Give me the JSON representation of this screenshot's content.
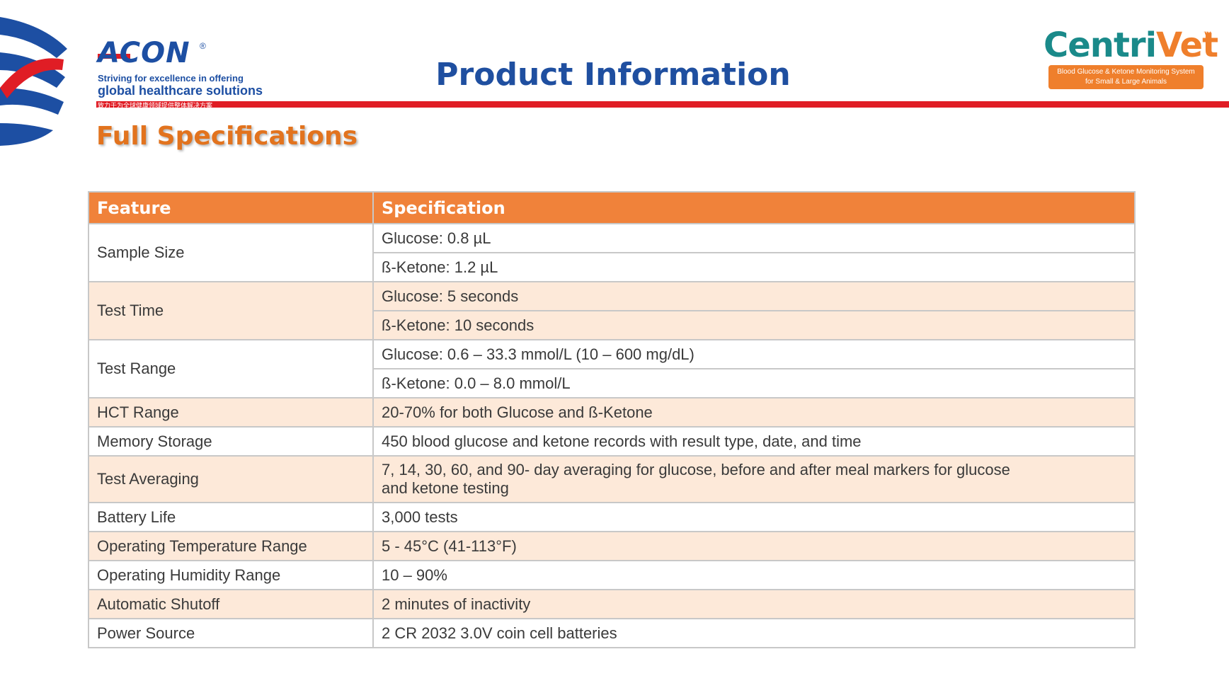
{
  "header": {
    "acon_logo": "ACON",
    "acon_registered": "®",
    "acon_tagline_1": "Striving for excellence in offering",
    "acon_tagline_2": "global healthcare solutions",
    "acon_tagline_cn": "致力于为全球健康领域提供整体解决方案",
    "title": "Product Information",
    "centrivet_logo_1": "Centri",
    "centrivet_logo_2": "Vet",
    "centrivet_tm": "™",
    "centrivet_tagline_1": "Blood Glucose & Ketone Monitoring System",
    "centrivet_tagline_2": "for Small & Large Animals"
  },
  "section_title": "Full Specifications",
  "table": {
    "columns": [
      "Feature",
      "Specification"
    ],
    "rows": [
      {
        "feature": "Sample Size",
        "specs": [
          "Glucose: 0.8 µL",
          "ß-Ketone: 1.2 µL"
        ]
      },
      {
        "feature": "Test Time",
        "specs": [
          "Glucose: 5 seconds",
          "ß-Ketone: 10 seconds"
        ]
      },
      {
        "feature": "Test Range",
        "specs": [
          "Glucose: 0.6 – 33.3 mmol/L (10 – 600 mg/dL)",
          "ß-Ketone: 0.0 – 8.0 mmol/L"
        ]
      },
      {
        "feature": "HCT Range",
        "specs": [
          "20-70% for both Glucose and ß-Ketone"
        ]
      },
      {
        "feature": "Memory Storage",
        "specs": [
          "450 blood glucose and ketone records with result type, date, and time"
        ]
      },
      {
        "feature": "Test Averaging",
        "specs": [
          "7, 14, 30, 60, and 90- day averaging for glucose, before and after meal markers for glucose and ketone testing"
        ]
      },
      {
        "feature": "Battery Life",
        "specs": [
          "3,000 tests"
        ]
      },
      {
        "feature": "Operating Temperature Range",
        "specs": [
          "5 - 45°C (41-113°F)"
        ]
      },
      {
        "feature": "Operating Humidity Range",
        "specs": [
          "10 – 90%"
        ]
      },
      {
        "feature": "Automatic Shutoff",
        "specs": [
          "2 minutes of inactivity"
        ]
      },
      {
        "feature": "Power Source",
        "specs": [
          "2 CR 2032 3.0V coin cell batteries"
        ]
      }
    ]
  }
}
